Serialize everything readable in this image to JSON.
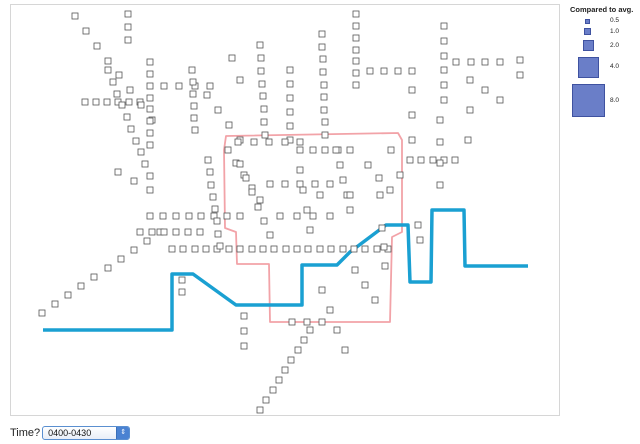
{
  "legend": {
    "title": "Compared to avg.",
    "items": [
      {
        "label": "0.5",
        "ratio": 0.5
      },
      {
        "label": "1.0",
        "ratio": 1.0
      },
      {
        "label": "2.0",
        "ratio": 2.0
      },
      {
        "label": "4.0",
        "ratio": 4.0
      },
      {
        "label": "8.0",
        "ratio": 8.0
      }
    ]
  },
  "time_control": {
    "label": "Time?",
    "selected": "0400-0430"
  },
  "colors": {
    "station_stroke": "#555555",
    "river": "#1aa0d2",
    "boundary": "#f2a3a8",
    "legend_fill": "#6a7ec8",
    "select_accent": "#4a82d2"
  },
  "icons": {
    "dropdown": "chevron-updown-icon"
  }
}
